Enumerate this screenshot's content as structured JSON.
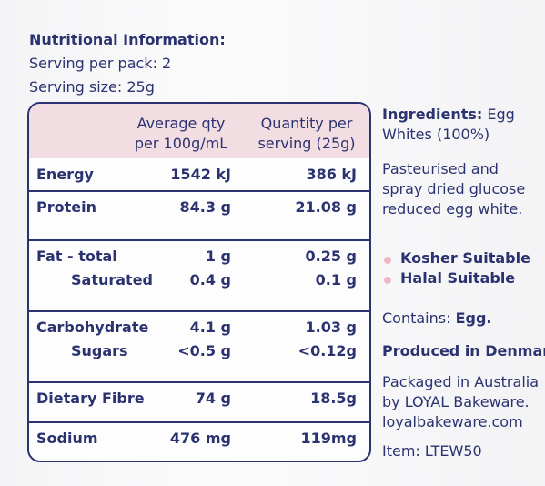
{
  "header": {
    "title": "Nutritional Information:",
    "serving_per_pack": "Serving per pack: 2",
    "serving_size": "Serving size: 25g"
  },
  "table": {
    "columns": [
      [
        "Average qty",
        "per 100g/mL"
      ],
      [
        "Quantity per",
        "serving (25g)"
      ]
    ],
    "rows": [
      [
        [
          "Energy",
          "1542 kJ",
          "386 kJ"
        ]
      ],
      [
        [
          "Protein",
          "84.3 g",
          "21.08 g"
        ]
      ],
      [
        [
          "Fat - total",
          "1 g",
          "0.25 g"
        ],
        [
          "Saturated",
          "0.4 g",
          "0.1 g"
        ]
      ],
      [
        [
          "Carbohydrate",
          "4.1 g",
          "1.03 g"
        ],
        [
          "Sugars",
          "<0.5 g",
          "<0.12g"
        ]
      ],
      [
        [
          "Dietary Fibre",
          "74 g",
          "18.5g"
        ]
      ],
      [
        [
          "Sodium",
          "476 mg",
          "119mg"
        ]
      ]
    ]
  },
  "side": {
    "ingredients_label": "Ingredients:",
    "ingredients": [
      "Egg",
      "Whites (100%)"
    ],
    "description": [
      "Pasteurised and",
      "spray dried glucose",
      "reduced egg white."
    ],
    "badges": [
      "Kosher Suitable",
      "Halal Suitable"
    ],
    "contains_label": "Contains:",
    "contains": "Egg.",
    "produced": "Produced in Denmark.",
    "packaged": [
      "Packaged in Australia",
      "by LOYAL Bakeware.",
      "loyalbakeware.com"
    ],
    "item": "Item: LTEW50"
  }
}
